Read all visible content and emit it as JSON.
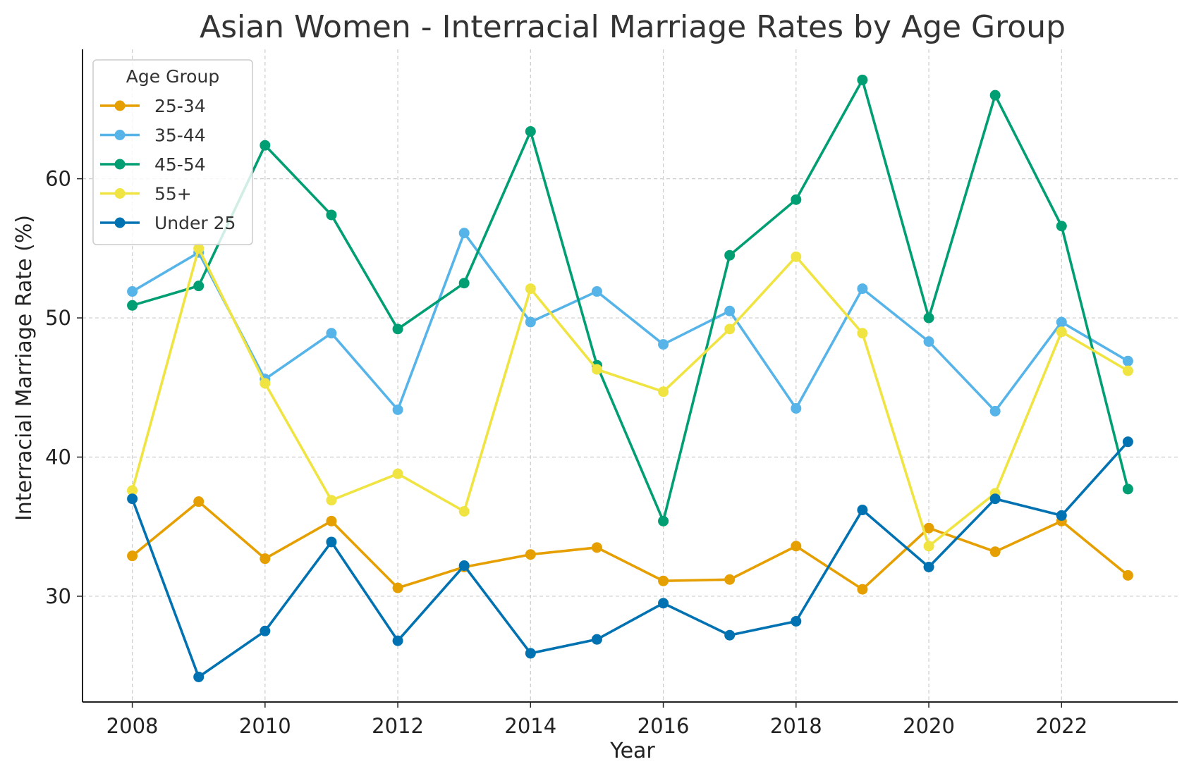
{
  "chart_data": {
    "type": "line",
    "title": "Asian Women - Interracial Marriage Rates by Age Group",
    "xlabel": "Year",
    "ylabel": "Interracial Marriage Rate (%)",
    "x": [
      2008,
      2009,
      2010,
      2011,
      2012,
      2013,
      2014,
      2015,
      2016,
      2017,
      2018,
      2019,
      2020,
      2021,
      2022,
      2023
    ],
    "xlim": [
      2007.25,
      2023.75
    ],
    "ylim": [
      22.4,
      69.3
    ],
    "xticks": [
      "2008",
      "2010",
      "2012",
      "2014",
      "2016",
      "2018",
      "2020",
      "2022"
    ],
    "yticks": [
      "30",
      "40",
      "50",
      "60"
    ],
    "grid": true,
    "legend": {
      "title": "Age Group",
      "position": "top-left"
    },
    "series": [
      {
        "name": "25-34",
        "color": "#E69F00",
        "values": [
          32.9,
          36.8,
          32.7,
          35.4,
          30.6,
          32.1,
          33.0,
          33.5,
          31.1,
          31.2,
          33.6,
          30.5,
          34.9,
          33.2,
          35.4,
          31.5
        ]
      },
      {
        "name": "35-44",
        "color": "#56B4E9",
        "values": [
          51.9,
          54.7,
          45.6,
          48.9,
          43.4,
          56.1,
          49.7,
          51.9,
          48.1,
          50.5,
          43.5,
          52.1,
          48.3,
          43.3,
          49.7,
          46.9
        ]
      },
      {
        "name": "45-54",
        "color": "#009E73",
        "values": [
          50.9,
          52.3,
          62.4,
          57.4,
          49.2,
          52.5,
          63.4,
          46.6,
          35.4,
          54.5,
          58.5,
          67.1,
          50.0,
          66.0,
          56.6,
          37.7
        ]
      },
      {
        "name": "55+",
        "color": "#F0E442",
        "values": [
          37.6,
          55.0,
          45.3,
          36.9,
          38.8,
          36.1,
          52.1,
          46.3,
          44.7,
          49.2,
          54.4,
          48.9,
          33.6,
          37.4,
          49.0,
          46.2
        ]
      },
      {
        "name": "Under 25",
        "color": "#0072B2",
        "values": [
          37.0,
          24.2,
          27.5,
          33.9,
          26.8,
          32.2,
          25.9,
          26.9,
          29.5,
          27.2,
          28.2,
          36.2,
          32.1,
          37.0,
          35.8,
          41.1
        ]
      }
    ]
  }
}
